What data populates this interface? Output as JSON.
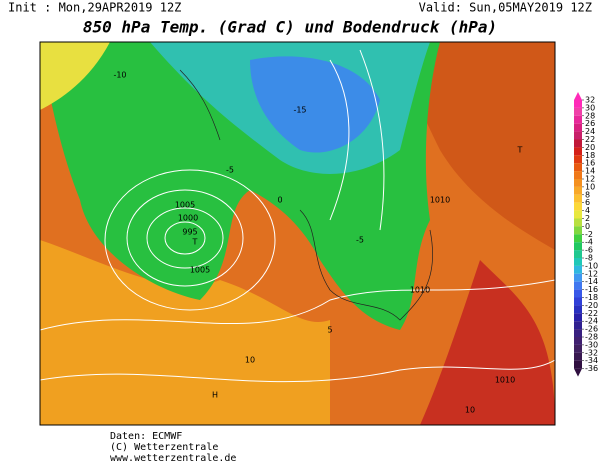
{
  "header": {
    "init": "Init : Mon,29APR2019 12Z",
    "valid": "Valid: Sun,05MAY2019 12Z",
    "title": "850 hPa Temp. (Grad C) und Bodendruck (hPa)"
  },
  "colorbar": {
    "ticks": [
      32,
      30,
      28,
      26,
      24,
      22,
      20,
      18,
      16,
      14,
      12,
      10,
      8,
      6,
      4,
      2,
      0,
      -2,
      -4,
      -6,
      -8,
      -10,
      -12,
      -14,
      -16,
      -18,
      -20,
      -22,
      -24,
      -26,
      -28,
      -30,
      -32,
      -34,
      -36
    ],
    "colors": [
      "#ff2ab8",
      "#f040a8",
      "#e8289a",
      "#d82080",
      "#c8206a",
      "#c01838",
      "#d42018",
      "#e03a10",
      "#e85a10",
      "#f07818",
      "#f49020",
      "#f8a828",
      "#fcc030",
      "#fcd838",
      "#e8e840",
      "#b8e040",
      "#80d840",
      "#40d040",
      "#20c860",
      "#20c890",
      "#20c8b8",
      "#30b8e0",
      "#4098f0",
      "#4078f0",
      "#3858e8",
      "#3040d8",
      "#2830c0",
      "#2820a8",
      "#302090",
      "#382080",
      "#402070",
      "#402060",
      "#381850",
      "#301040"
    ]
  },
  "map_labels": [
    "995",
    "1000",
    "1005",
    "1005",
    "1010",
    "1010",
    "T",
    "T",
    "H",
    "-10",
    "-15",
    "-5",
    "10",
    "5",
    "0",
    "-5",
    "1010",
    "10"
  ],
  "footer": {
    "source": "Daten: ECMWF",
    "copyright": "(C) Wetterzentrale",
    "url": "www.wetterzentrale.de"
  }
}
